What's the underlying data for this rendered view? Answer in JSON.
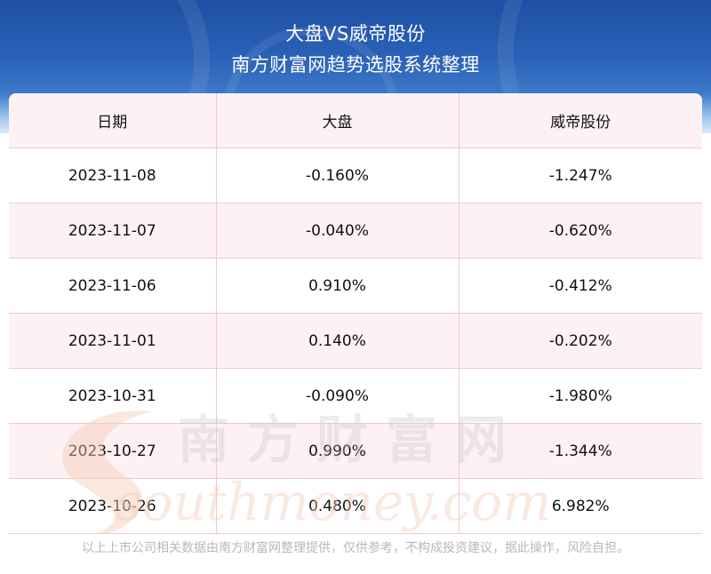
{
  "header": {
    "title": "大盘VS威帝股份",
    "subtitle": "南方财富网趋势选股系统整理"
  },
  "table": {
    "columns": [
      "日期",
      "大盘",
      "威帝股份"
    ],
    "rows": [
      [
        "2023-11-08",
        "-0.160%",
        "-1.247%"
      ],
      [
        "2023-11-07",
        "-0.040%",
        "-0.620%"
      ],
      [
        "2023-11-06",
        "0.910%",
        "-0.412%"
      ],
      [
        "2023-11-01",
        "0.140%",
        "-0.202%"
      ],
      [
        "2023-10-31",
        "-0.090%",
        "-1.980%"
      ],
      [
        "2023-10-27",
        "0.990%",
        "-1.344%"
      ],
      [
        "2023-10-26",
        "0.480%",
        "6.982%"
      ]
    ]
  },
  "watermark": {
    "chinese": "南方财富网",
    "latin": "southmoney.com"
  },
  "footer": {
    "disclaimer": "以上上市公司相关数据由南方财富网整理提供，仅供参考，不构成投资建议，据此操作，风险自担。"
  },
  "colors": {
    "header_blue": "#2b63b8",
    "row_pink": "#fdf1f3",
    "grid_line": "#f0c8cf",
    "watermark": "#f3c9b5"
  }
}
